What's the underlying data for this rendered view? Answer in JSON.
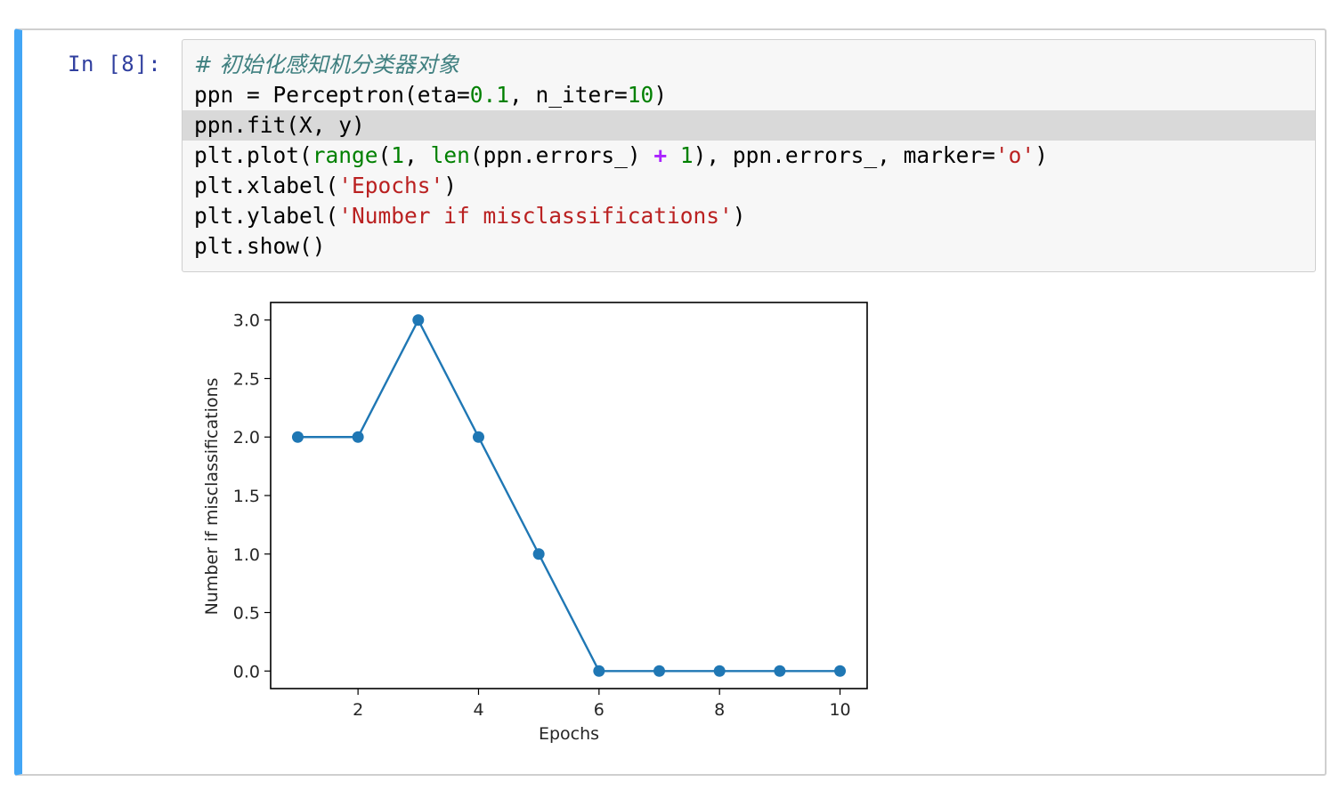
{
  "cell": {
    "prompt": "In [8]:",
    "code_lines": [
      [
        {
          "t": "# 初始化感知机分类器对象",
          "c": "comment"
        }
      ],
      [
        {
          "t": "ppn = Perceptron(eta="
        },
        {
          "t": "0.1",
          "c": "num"
        },
        {
          "t": ", n_iter="
        },
        {
          "t": "10",
          "c": "num"
        },
        {
          "t": ")"
        }
      ],
      [
        {
          "t": "ppn.fit(X, y)"
        }
      ],
      [
        {
          "t": "plt.plot("
        },
        {
          "t": "range",
          "c": "kw"
        },
        {
          "t": "("
        },
        {
          "t": "1",
          "c": "num"
        },
        {
          "t": ", "
        },
        {
          "t": "len",
          "c": "kw"
        },
        {
          "t": "(ppn.errors_) "
        },
        {
          "t": "+",
          "c": "op"
        },
        {
          "t": " "
        },
        {
          "t": "1",
          "c": "num"
        },
        {
          "t": "), ppn.errors_, marker="
        },
        {
          "t": "'o'",
          "c": "str"
        },
        {
          "t": ")"
        }
      ],
      [
        {
          "t": "plt.xlabel("
        },
        {
          "t": "'Epochs'",
          "c": "str"
        },
        {
          "t": ")"
        }
      ],
      [
        {
          "t": "plt.ylabel("
        },
        {
          "t": "'Number if misclassifications'",
          "c": "str"
        },
        {
          "t": ")"
        }
      ],
      [
        {
          "t": "plt.show()"
        }
      ]
    ],
    "active_line": 2
  },
  "chart_data": {
    "type": "line",
    "x": [
      1,
      2,
      3,
      4,
      5,
      6,
      7,
      8,
      9,
      10
    ],
    "series": [
      {
        "values": [
          2,
          2,
          3,
          2,
          1,
          0,
          0,
          0,
          0,
          0
        ],
        "color": "#1f77b4",
        "marker": "o"
      }
    ],
    "xlabel": "Epochs",
    "ylabel": "Number if misclassifications",
    "xticks": [
      2,
      4,
      6,
      8,
      10
    ],
    "xtick_labels": [
      "2",
      "4",
      "6",
      "8",
      "10"
    ],
    "yticks": [
      0.0,
      0.5,
      1.0,
      1.5,
      2.0,
      2.5,
      3.0
    ],
    "ytick_labels": [
      "0.0",
      "0.5",
      "1.0",
      "1.5",
      "2.0",
      "2.5",
      "3.0"
    ],
    "xlim": [
      0.55,
      10.45
    ],
    "ylim": [
      -0.15,
      3.15
    ],
    "grid": false
  }
}
